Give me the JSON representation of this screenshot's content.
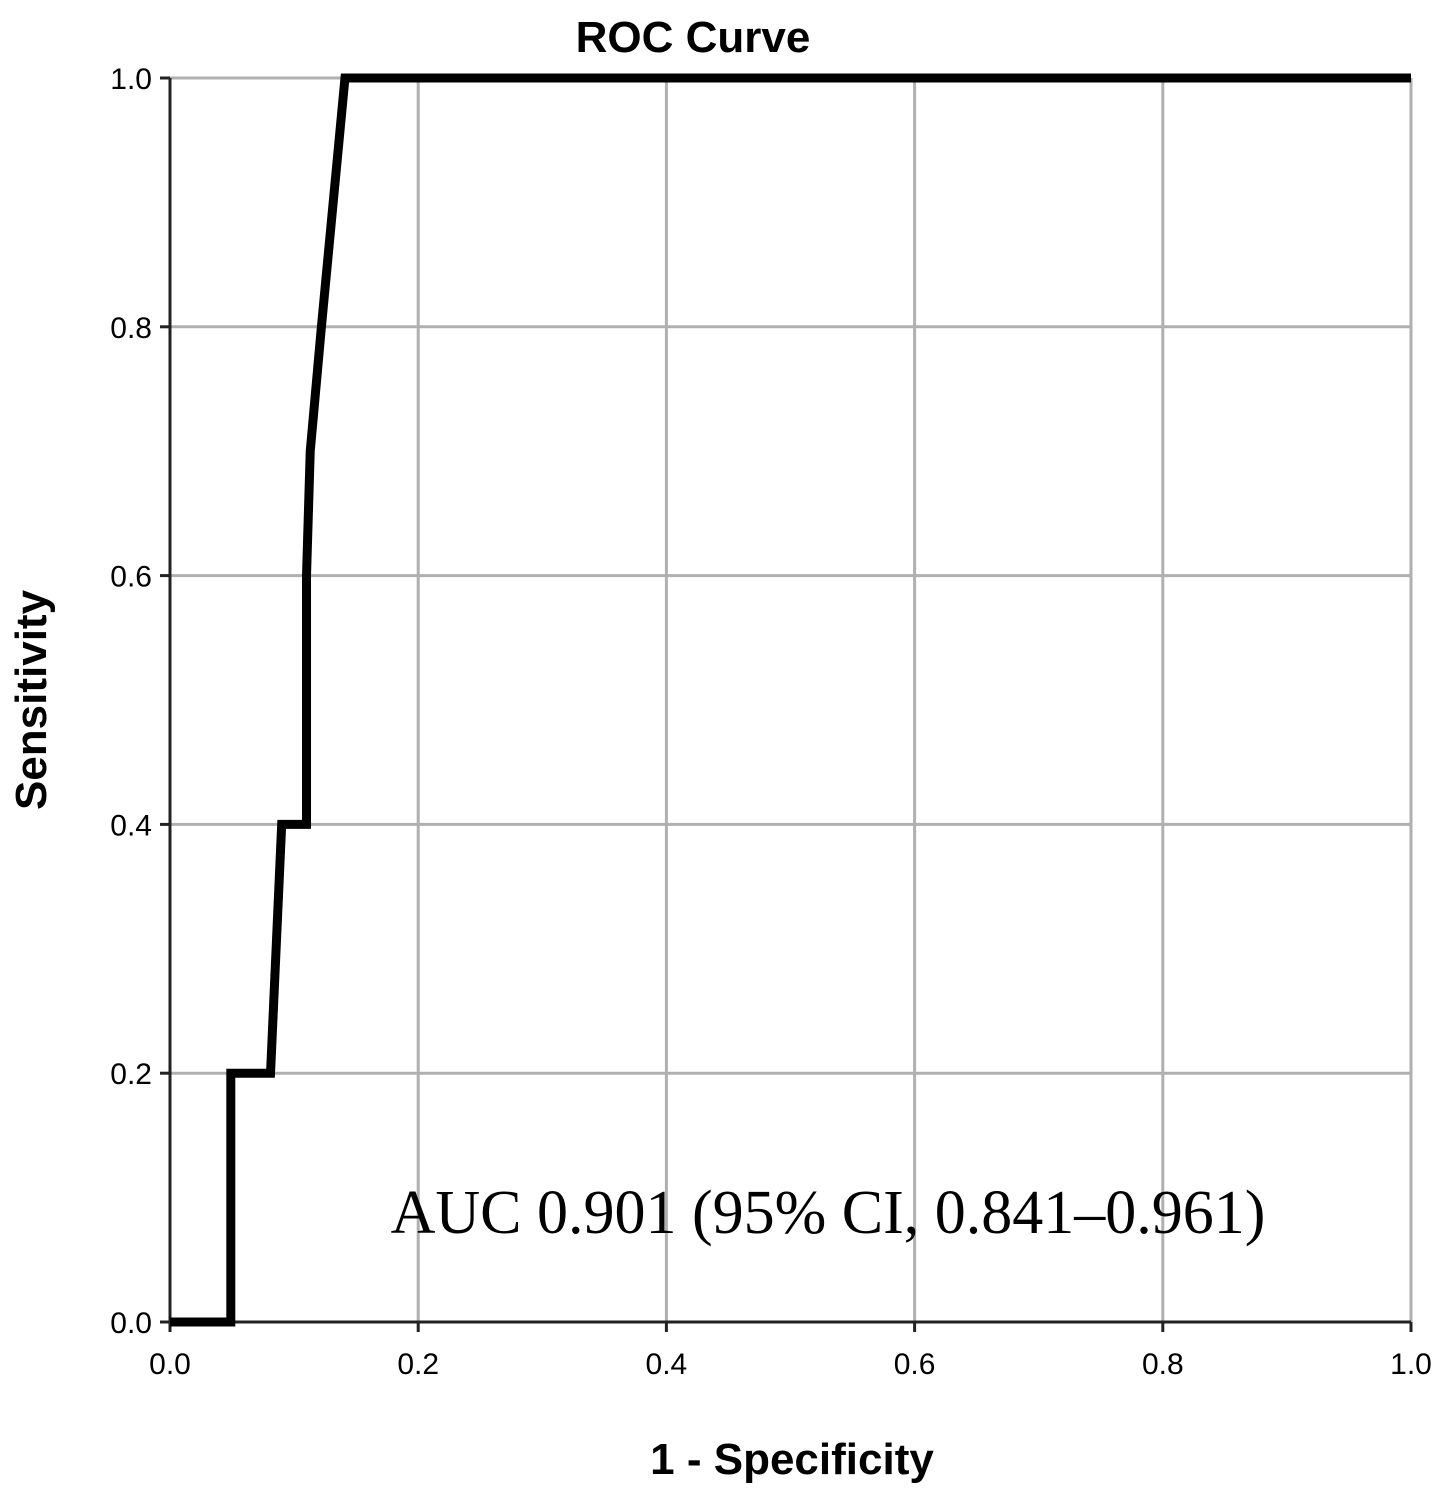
{
  "chart_data": {
    "type": "line",
    "title": "ROC Curve",
    "xlabel": "1 - Specificity",
    "ylabel": "Sensitivity",
    "xlim": [
      0,
      1
    ],
    "ylim": [
      0,
      1
    ],
    "grid": true,
    "x_ticks": [
      0.0,
      0.2,
      0.4,
      0.6,
      0.8,
      1.0
    ],
    "y_ticks": [
      0.0,
      0.2,
      0.4,
      0.6,
      0.8,
      1.0
    ],
    "x_tick_labels": [
      "0.0",
      "0.2",
      "0.4",
      "0.6",
      "0.8",
      "1.0"
    ],
    "y_tick_labels": [
      "0.0",
      "0.2",
      "0.4",
      "0.6",
      "0.8",
      "1.0"
    ],
    "series": [
      {
        "color": "#000000",
        "x": [
          0.0,
          0.049,
          0.049,
          0.081,
          0.09,
          0.11,
          0.11,
          0.113,
          0.122,
          0.141,
          1.0
        ],
        "y": [
          0.0,
          0.0,
          0.2,
          0.2,
          0.4,
          0.4,
          0.6,
          0.7,
          0.8,
          1.0,
          1.0
        ]
      }
    ],
    "annotation": "AUC 0.901 (95% CI, 0.841–0.961)"
  },
  "colors": {
    "grid": "#b0b0b0",
    "axis": "#222222",
    "curve": "#000000",
    "text": "#000000"
  }
}
